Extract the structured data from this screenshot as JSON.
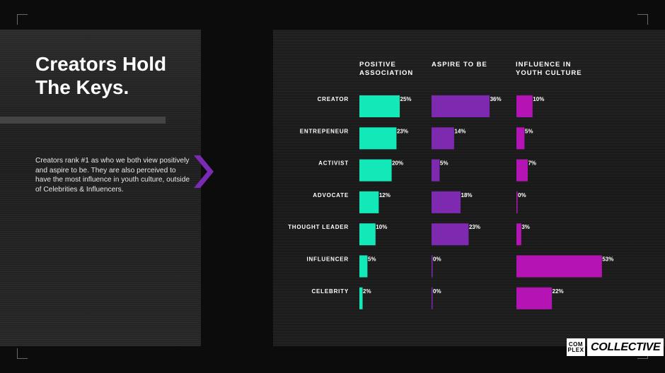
{
  "slide": {
    "title_line1": "Creators Hold",
    "title_line2": "The Keys.",
    "body": "Creators rank #1 as who we both view positively and aspire to be. They are also perceived to have the most influence in youth culture, outside of Celebrities & Influencers.",
    "brand_mark_top": "COM",
    "brand_mark_bottom": "PLEX",
    "brand_name": "COLLECTIVE",
    "chevron_icon": "chevron-right-icon",
    "colors": {
      "positive": "#12e8b8",
      "aspire": "#7d2ab0",
      "influence": "#b414b4",
      "chevron": "#7a2bb5"
    }
  },
  "chart_data": {
    "type": "bar",
    "orientation": "horizontal",
    "categories": [
      "CREATOR",
      "ENTREPENEUR",
      "ACTIVIST",
      "ADVOCATE",
      "THOUGHT LEADER",
      "INFLUENCER",
      "CELEBRITY"
    ],
    "series": [
      {
        "name": "POSITIVE\nASSOCIATION",
        "values": [
          25,
          23,
          20,
          12,
          10,
          5,
          2
        ]
      },
      {
        "name": "ASPIRE TO BE",
        "values": [
          36,
          14,
          5,
          18,
          23,
          0,
          0
        ]
      },
      {
        "name": "INFLUENCE IN\nYOUTH CULTURE",
        "values": [
          10,
          5,
          7,
          0,
          3,
          53,
          22
        ]
      }
    ],
    "value_suffix": "%",
    "grid": false
  }
}
